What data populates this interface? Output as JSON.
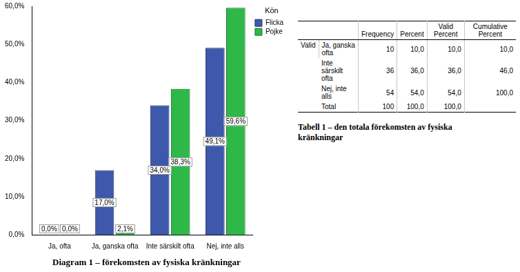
{
  "chart_data": {
    "type": "bar",
    "title": "Diagram 1 – förekomsten av fysiska kränkningar",
    "categories": [
      "Ja, ofta",
      "Ja, ganska ofta",
      "Inte särskilt ofta",
      "Nej, inte alls"
    ],
    "series": [
      {
        "name": "Flicka",
        "color": "#3e58ac",
        "values": [
          0.0,
          17.0,
          34.0,
          49.1
        ],
        "value_labels": [
          "0,0%",
          "17,0%",
          "34,0%",
          "49,1%"
        ]
      },
      {
        "name": "Pojke",
        "color": "#2eb848",
        "values": [
          0.0,
          2.1,
          38.3,
          59.6
        ],
        "value_labels": [
          "0,0%",
          "2,1%",
          "38,3%",
          "59,6%"
        ]
      }
    ],
    "legend_title": "Kön",
    "legend": "right",
    "ylim": [
      0,
      60
    ],
    "yticks": [
      {
        "value": 0,
        "label": "0,0%"
      },
      {
        "value": 10,
        "label": "10,0%"
      },
      {
        "value": 20,
        "label": "20,0%"
      },
      {
        "value": 30,
        "label": "30,0%"
      },
      {
        "value": 40,
        "label": "40,0%"
      },
      {
        "value": 50,
        "label": "50,0%"
      },
      {
        "value": 60,
        "label": "60,0%"
      }
    ],
    "grid": false,
    "data_labels": true
  },
  "table": {
    "caption": "Tabell 1 – den totala förekomsten av fysiska kränkningar",
    "row_group": "Valid",
    "columns": [
      "Frequency",
      "Percent",
      "Valid Percent",
      "Cumulative Percent"
    ],
    "rows": [
      {
        "label": "Ja, ganska ofta",
        "cells": [
          "10",
          "10,0",
          "10,0",
          "10,0"
        ]
      },
      {
        "label": "Inte särskilt ofta",
        "cells": [
          "36",
          "36,0",
          "36,0",
          "46,0"
        ]
      },
      {
        "label": "Nej, inte alls",
        "cells": [
          "54",
          "54,0",
          "54,0",
          "100,0"
        ]
      },
      {
        "label": "Total",
        "cells": [
          "100",
          "100,0",
          "100,0"
        ]
      }
    ]
  }
}
